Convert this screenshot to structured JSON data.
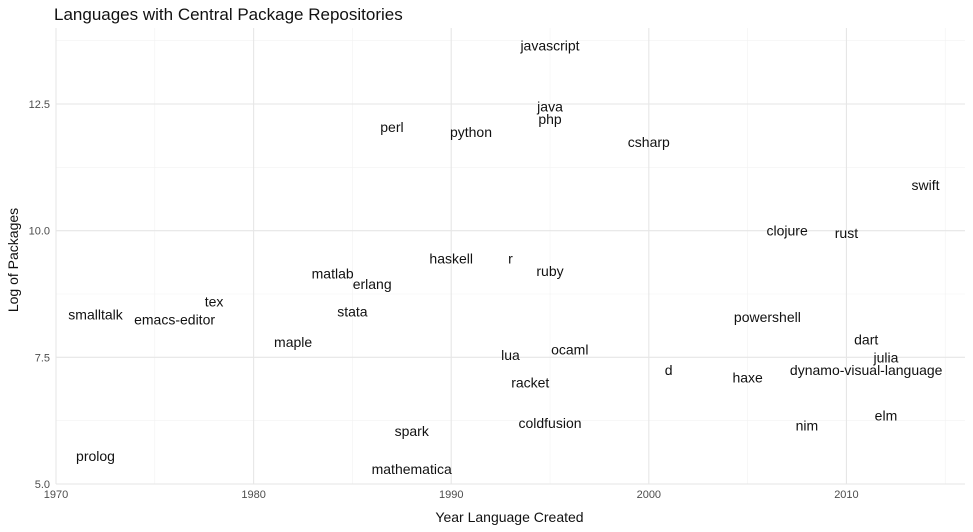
{
  "chart_data": {
    "type": "scatter",
    "title": "Languages with Central Package Repositories",
    "xlabel": "Year Language Created",
    "ylabel": "Log of Packages",
    "xlim": [
      1970,
      2016
    ],
    "ylim": [
      5.0,
      14.0
    ],
    "x_ticks": [
      1970,
      1980,
      1990,
      2000,
      2010
    ],
    "x_tick_labels": [
      "1970",
      "1980",
      "1990",
      "2000",
      "2010"
    ],
    "y_ticks": [
      5.0,
      7.5,
      10.0,
      12.5
    ],
    "y_tick_labels": [
      "5.0",
      "7.5",
      "10.0",
      "12.5"
    ],
    "grid": true,
    "marker": "text-label",
    "points": [
      {
        "label": "javascript",
        "x": 1995,
        "y": 13.65
      },
      {
        "label": "java",
        "x": 1995,
        "y": 12.45
      },
      {
        "label": "php",
        "x": 1995,
        "y": 12.2
      },
      {
        "label": "perl",
        "x": 1987,
        "y": 12.05
      },
      {
        "label": "python",
        "x": 1991,
        "y": 11.95
      },
      {
        "label": "csharp",
        "x": 2000,
        "y": 11.75
      },
      {
        "label": "swift",
        "x": 2014,
        "y": 10.9
      },
      {
        "label": "clojure",
        "x": 2007,
        "y": 10.0
      },
      {
        "label": "rust",
        "x": 2010,
        "y": 9.95
      },
      {
        "label": "haskell",
        "x": 1990,
        "y": 9.45
      },
      {
        "label": "r",
        "x": 1993,
        "y": 9.45
      },
      {
        "label": "ruby",
        "x": 1995,
        "y": 9.2
      },
      {
        "label": "matlab",
        "x": 1984,
        "y": 9.15
      },
      {
        "label": "erlang",
        "x": 1986,
        "y": 8.95
      },
      {
        "label": "tex",
        "x": 1978,
        "y": 8.6
      },
      {
        "label": "stata",
        "x": 1985,
        "y": 8.4
      },
      {
        "label": "smalltalk",
        "x": 1972,
        "y": 8.35
      },
      {
        "label": "emacs-editor",
        "x": 1976,
        "y": 8.25
      },
      {
        "label": "powershell",
        "x": 2006,
        "y": 8.3
      },
      {
        "label": "dart",
        "x": 2011,
        "y": 7.85
      },
      {
        "label": "maple",
        "x": 1982,
        "y": 7.8
      },
      {
        "label": "ocaml",
        "x": 1996,
        "y": 7.65
      },
      {
        "label": "lua",
        "x": 1993,
        "y": 7.55
      },
      {
        "label": "julia",
        "x": 2012,
        "y": 7.5
      },
      {
        "label": "d",
        "x": 2001,
        "y": 7.25
      },
      {
        "label": "dynamo-visual-language",
        "x": 2011,
        "y": 7.25
      },
      {
        "label": "haxe",
        "x": 2005,
        "y": 7.1
      },
      {
        "label": "racket",
        "x": 1994,
        "y": 7.0
      },
      {
        "label": "elm",
        "x": 2012,
        "y": 6.35
      },
      {
        "label": "coldfusion",
        "x": 1995,
        "y": 6.2
      },
      {
        "label": "nim",
        "x": 2008,
        "y": 6.15
      },
      {
        "label": "spark",
        "x": 1988,
        "y": 6.05
      },
      {
        "label": "prolog",
        "x": 1972,
        "y": 5.55
      },
      {
        "label": "mathematica",
        "x": 1988,
        "y": 5.3
      }
    ]
  }
}
